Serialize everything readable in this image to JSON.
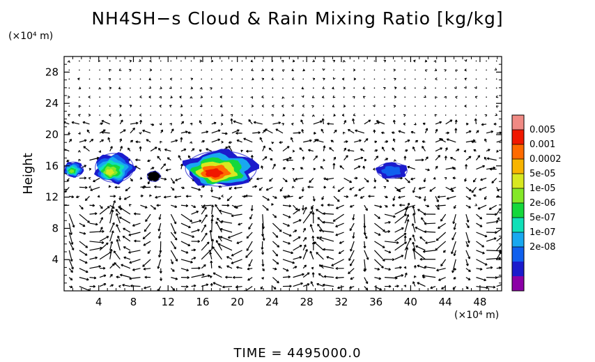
{
  "title": "NH4SH−s Cloud & Rain Mixing Ratio [kg/kg]",
  "y_unit_label": "(×10⁴ m)",
  "x_unit_label": "(×10⁴ m)",
  "time_label": "TIME  =  4495000.0",
  "colors": {
    "scale": [
      "#8b00a6",
      "#1b1bcc",
      "#1060ee",
      "#18a8f0",
      "#10e0b8",
      "#14d83c",
      "#84e828",
      "#d8e820",
      "#f8b400",
      "#ff6a00",
      "#f01800",
      "#f08a84"
    ]
  },
  "chart_data": {
    "type": "heatmap",
    "title": "NH4SH−s Cloud & Rain Mixing Ratio [kg/kg]",
    "xlabel": "",
    "ylabel": "Height",
    "xlim": [
      0,
      50.5
    ],
    "ylim": [
      0,
      30
    ],
    "x_ticks": [
      "4",
      "8",
      "12",
      "16",
      "20",
      "24",
      "28",
      "32",
      "36",
      "40",
      "44",
      "48"
    ],
    "y_ticks": [
      "4",
      "8",
      "12",
      "16",
      "20",
      "24",
      "28"
    ],
    "colorbar_labels": [
      "0.005",
      "0.001",
      "0.0002",
      "5e-05",
      "1e-05",
      "2e-06",
      "5e-07",
      "1e-07",
      "2e-08"
    ],
    "cloud_regions": [
      {
        "x": [
          0,
          2.2
        ],
        "y": [
          14.6,
          16.5
        ],
        "peak": "1e-05"
      },
      {
        "x": [
          3.6,
          8.0
        ],
        "y": [
          13.9,
          17.6
        ],
        "peak": "5e-05"
      },
      {
        "x": [
          9.6,
          11.1
        ],
        "y": [
          14.0,
          15.3
        ],
        "peak": "2e-05"
      },
      {
        "x": [
          14.0,
          22.2
        ],
        "y": [
          13.4,
          17.9
        ],
        "peak": "0.001"
      },
      {
        "x": [
          36.1,
          39.6
        ],
        "y": [
          14.4,
          16.4
        ],
        "peak": "1e-07"
      }
    ],
    "overlay": "wind vectors"
  }
}
